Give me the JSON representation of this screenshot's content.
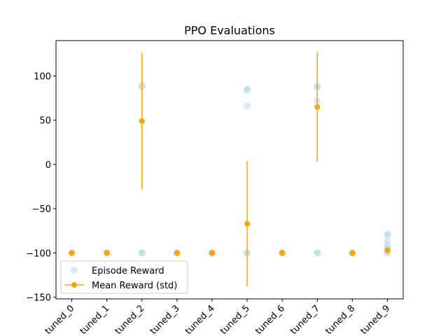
{
  "chart_data": {
    "type": "scatter",
    "title": "PPO Evaluations",
    "xlabel": "",
    "ylabel": "",
    "categories": [
      "tuned_0",
      "tuned_1",
      "tuned_2",
      "tuned_3",
      "tuned_4",
      "tuned_5",
      "tuned_6",
      "tuned_7",
      "tuned_8",
      "tuned_9"
    ],
    "ylim": [
      -152,
      140
    ],
    "yticks": [
      -150,
      -100,
      -50,
      0,
      50,
      100
    ],
    "ytick_labels": [
      "−150",
      "−100",
      "−50",
      "0",
      "50",
      "100"
    ],
    "grid": false,
    "legend_position": "lower-left",
    "colors": {
      "episode": "#add8e6",
      "mean": "#ffa500"
    },
    "series": [
      {
        "name": "Episode Reward",
        "kind": "scatter",
        "points": [
          [
            0,
            -100
          ],
          [
            0,
            -100
          ],
          [
            0,
            -100
          ],
          [
            1,
            -100
          ],
          [
            1,
            -100
          ],
          [
            1,
            -100
          ],
          [
            2,
            89
          ],
          [
            2,
            88
          ],
          [
            2,
            -100
          ],
          [
            2,
            -100
          ],
          [
            3,
            -100
          ],
          [
            3,
            -100
          ],
          [
            3,
            -100
          ],
          [
            4,
            -100
          ],
          [
            4,
            -100
          ],
          [
            4,
            -100
          ],
          [
            5,
            85
          ],
          [
            5,
            84
          ],
          [
            5,
            66
          ],
          [
            5,
            -100
          ],
          [
            5,
            -100
          ],
          [
            6,
            -100
          ],
          [
            6,
            -100
          ],
          [
            6,
            -100
          ],
          [
            7,
            89
          ],
          [
            7,
            87
          ],
          [
            7,
            72
          ],
          [
            7,
            -100
          ],
          [
            7,
            -100
          ],
          [
            8,
            -100
          ],
          [
            8,
            -100
          ],
          [
            8,
            -100
          ],
          [
            9,
            -79
          ],
          [
            9,
            -80
          ],
          [
            9,
            -87
          ],
          [
            9,
            -92
          ],
          [
            9,
            -95
          ],
          [
            9,
            -97
          ],
          [
            9,
            -99
          ],
          [
            9,
            -100
          ]
        ]
      },
      {
        "name": "Mean Reward (std)",
        "kind": "errorbar",
        "means": [
          -100,
          -100,
          49,
          -100,
          -100,
          -67,
          -100,
          65,
          -100,
          -97
        ],
        "std": [
          0,
          0,
          77,
          0,
          0,
          71,
          0,
          62,
          0,
          3
        ]
      }
    ]
  }
}
